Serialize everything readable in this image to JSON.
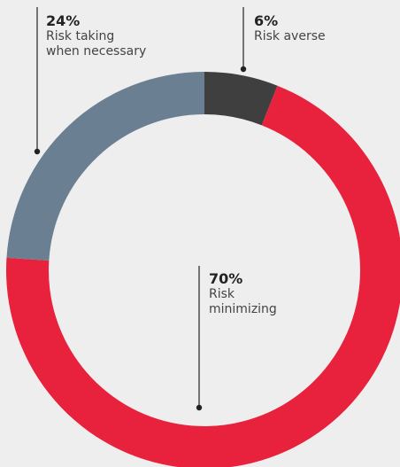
{
  "chart_data": {
    "type": "pie",
    "style": "donut",
    "slices": [
      {
        "label": "Risk averse",
        "value": 6,
        "display": "6%",
        "color": "#3f3f3f"
      },
      {
        "label": "Risk minimizing",
        "value": 70,
        "display": "70%",
        "color": "#e8213c"
      },
      {
        "label": "Risk taking when necessary",
        "value": 24,
        "display": "24%",
        "color": "#6b7f92"
      }
    ],
    "labels": {
      "averse": {
        "percent": "6%",
        "lines": [
          "Risk averse"
        ]
      },
      "minimizing": {
        "percent": "70%",
        "lines": [
          "Risk",
          "minimizing"
        ]
      },
      "taking": {
        "percent": "24%",
        "lines": [
          "Risk taking",
          "when necessary"
        ]
      }
    },
    "leader_color": "#222222"
  }
}
